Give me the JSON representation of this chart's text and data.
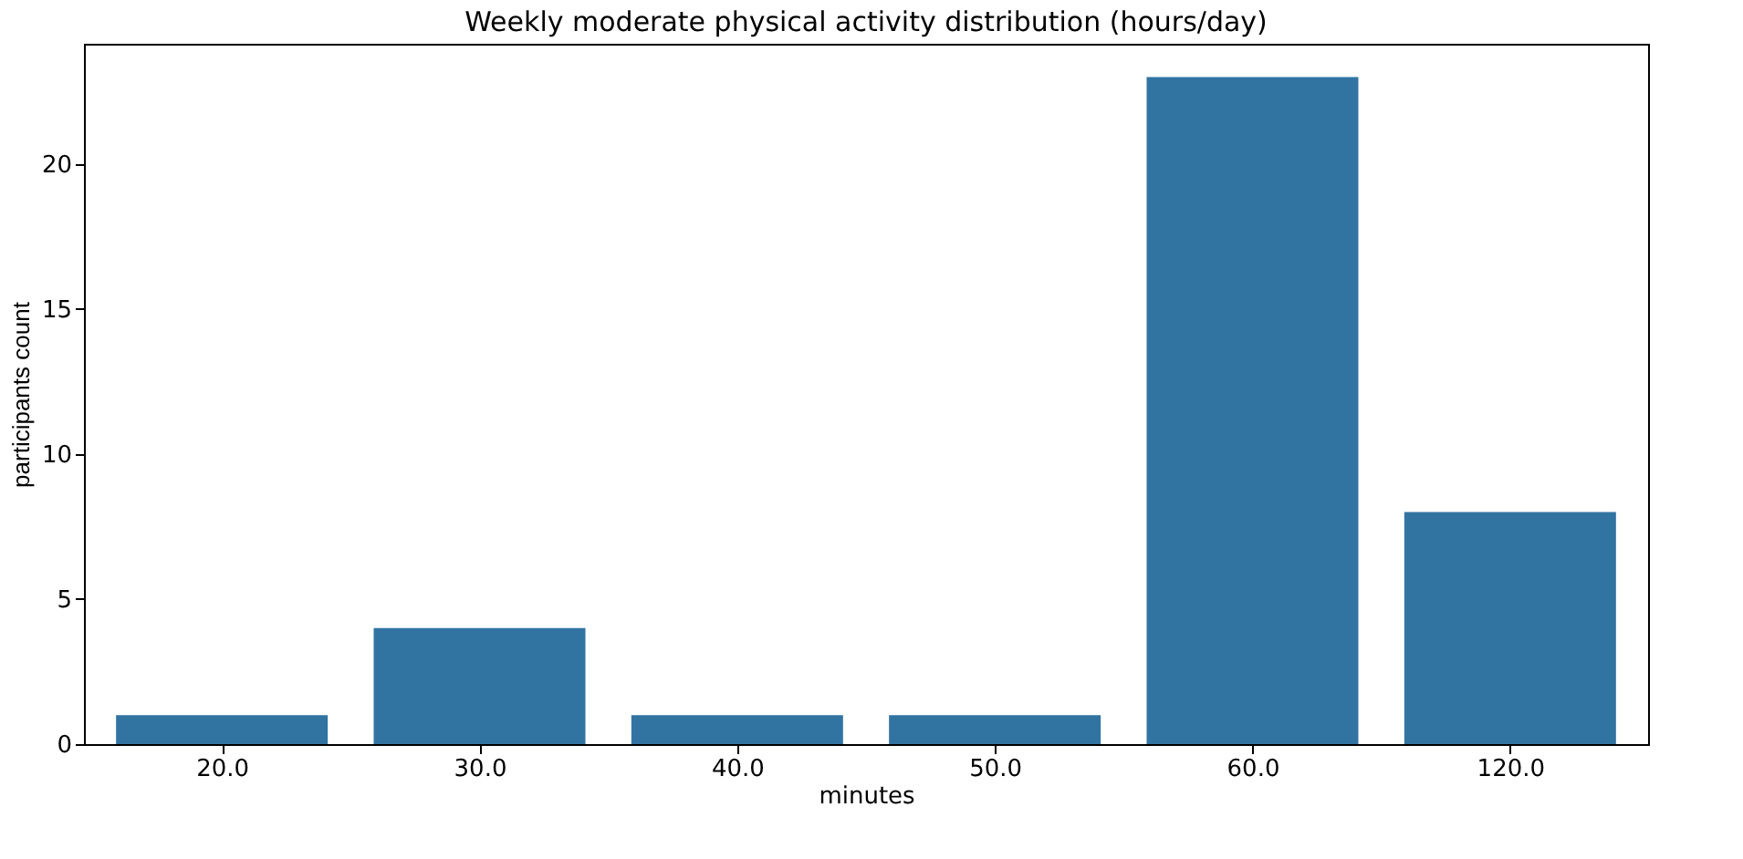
{
  "chart_data": {
    "type": "bar",
    "title": "Weekly moderate physical activity distribution (hours/day)",
    "xlabel": "minutes",
    "ylabel": "participants count",
    "categories": [
      "20.0",
      "30.0",
      "40.0",
      "50.0",
      "60.0",
      "120.0"
    ],
    "values": [
      1,
      4,
      1,
      1,
      23,
      8
    ],
    "color": "#3274a1",
    "ylim": [
      0,
      24.15
    ],
    "yticks": [
      0,
      5,
      10,
      15,
      20
    ],
    "grid": false
  }
}
